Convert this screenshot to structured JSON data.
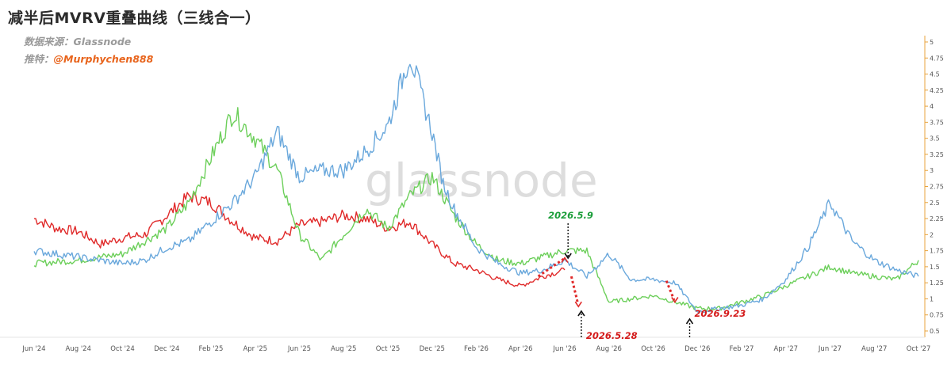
{
  "header": {
    "title": "减半后MVRV重叠曲线（三线合一）",
    "source_label": "数据来源：",
    "source_name": "Glassnode",
    "author_label": "推特：",
    "author_handle": "@Murphychen888"
  },
  "watermark": "glassnode",
  "colors": {
    "blue": "#6aa8dc",
    "green": "#6ccf5a",
    "red": "#e02a2a",
    "axis": "#e8a33c",
    "annotation_green": "#1b9e3a",
    "annotation_red": "#d41a1a"
  },
  "chart_data": {
    "type": "line",
    "title": "减半后MVRV重叠曲线（三线合一）",
    "x_ticks": [
      "Jun '24",
      "Aug '24",
      "Oct '24",
      "Dec '24",
      "Feb '25",
      "Apr '25",
      "Jun '25",
      "Aug '25",
      "Oct '25",
      "Dec '25",
      "Feb '26",
      "Apr '26",
      "Jun '26",
      "Aug '26",
      "Oct '26",
      "Dec '26",
      "Feb '27",
      "Apr '27",
      "Jun '27",
      "Aug '27",
      "Oct '27"
    ],
    "y_ticks": [
      "0.5",
      "0.75",
      "1",
      "1.25",
      "1.5",
      "1.75",
      "2",
      "2.25",
      "2.5",
      "2.75",
      "3",
      "3.25",
      "3.5",
      "3.75",
      "4",
      "4.25",
      "4.5",
      "4.75",
      "5"
    ],
    "ylim": [
      0.4,
      5.1
    ],
    "y_axis_side": "right",
    "series": [
      {
        "color": "blue",
        "x": [
          0,
          2,
          4,
          5,
          6,
          7,
          8,
          9,
          10,
          11,
          12,
          13,
          14,
          15,
          16,
          17,
          18,
          18.5,
          19,
          19.5,
          20,
          21,
          22,
          23,
          24,
          25,
          26,
          27,
          28,
          29,
          30,
          31,
          32,
          33,
          34,
          35,
          36,
          37,
          38,
          39,
          40
        ],
        "values": [
          1.75,
          1.65,
          1.55,
          1.6,
          1.8,
          1.9,
          2.2,
          2.5,
          2.9,
          3.6,
          2.9,
          3.0,
          3.0,
          3.3,
          3.7,
          4.8,
          3.6,
          2.8,
          2.4,
          2.1,
          1.8,
          1.55,
          1.4,
          1.45,
          1.6,
          1.35,
          1.7,
          1.3,
          1.3,
          1.25,
          0.8,
          0.85,
          0.9,
          1.0,
          1.3,
          1.8,
          2.5,
          1.9,
          1.6,
          1.45,
          1.35
        ]
      },
      {
        "color": "green",
        "x": [
          0,
          2,
          4,
          6,
          7,
          8,
          9,
          10,
          11,
          12,
          13,
          14,
          15,
          16,
          17,
          18,
          19,
          20,
          21,
          22,
          23,
          24,
          25,
          26,
          27,
          28,
          29,
          30,
          31,
          32,
          33,
          34,
          35,
          36,
          37,
          38,
          39,
          40
        ],
        "values": [
          1.55,
          1.6,
          1.7,
          2.1,
          2.5,
          3.2,
          3.9,
          3.5,
          3.0,
          2.0,
          1.6,
          2.0,
          2.4,
          2.1,
          2.6,
          2.9,
          2.3,
          1.85,
          1.6,
          1.55,
          1.65,
          1.75,
          1.75,
          0.95,
          1.0,
          1.05,
          0.95,
          0.85,
          0.85,
          0.95,
          1.05,
          1.2,
          1.35,
          1.5,
          1.4,
          1.35,
          1.3,
          1.6
        ]
      },
      {
        "color": "red",
        "x": [
          0,
          1,
          2,
          3,
          4,
          5,
          6,
          7,
          8,
          9,
          10,
          11,
          12,
          13,
          14,
          15,
          16,
          17,
          18,
          19,
          20,
          21,
          22,
          23,
          24
        ],
        "values": [
          2.25,
          2.1,
          2.05,
          1.85,
          1.95,
          2.0,
          2.3,
          2.6,
          2.5,
          2.2,
          1.95,
          1.9,
          2.15,
          2.2,
          2.3,
          2.25,
          2.1,
          2.2,
          1.85,
          1.55,
          1.45,
          1.3,
          1.2,
          1.35,
          1.45
        ]
      }
    ],
    "annotations": [
      {
        "label": "2026.5.9",
        "color": "green"
      },
      {
        "label": "2026.5.28",
        "color": "red"
      },
      {
        "label": "2026.9.23",
        "color": "red"
      }
    ],
    "grid": false,
    "legend": "none"
  }
}
